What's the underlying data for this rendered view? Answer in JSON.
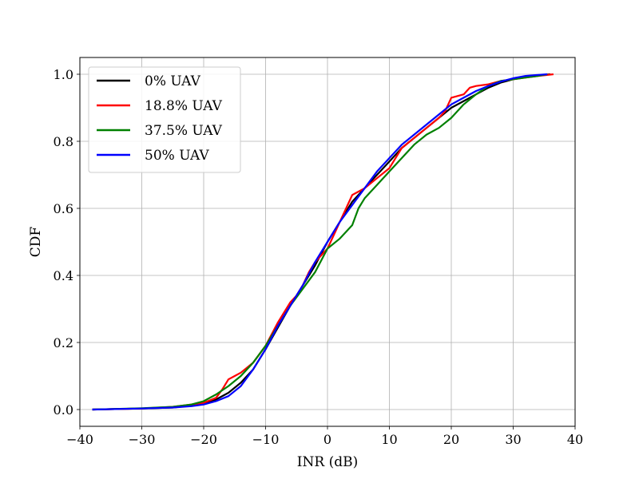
{
  "chart_data": {
    "type": "line",
    "title": "",
    "xlabel": "INR (dB)",
    "ylabel": "CDF",
    "xlim": [
      -40,
      40
    ],
    "ylim": [
      -0.05,
      1.05
    ],
    "xticks": [
      -40,
      -30,
      -20,
      -10,
      0,
      10,
      20,
      30,
      40
    ],
    "yticks": [
      0.0,
      0.2,
      0.4,
      0.6,
      0.8,
      1.0
    ],
    "ytick_labels": [
      "0.0",
      "0.2",
      "0.4",
      "0.6",
      "0.8",
      "1.0"
    ],
    "grid": true,
    "legend_position": "upper-left",
    "series": [
      {
        "name": "0% UAV",
        "color": "#000000",
        "x": [
          -38,
          -30,
          -25,
          -22,
          -20,
          -18,
          -16,
          -14,
          -12,
          -10,
          -8,
          -6,
          -4,
          -2,
          0,
          2,
          4,
          6,
          8,
          10,
          12,
          14,
          16,
          18,
          20,
          22,
          24,
          26,
          28,
          30,
          32,
          34,
          36
        ],
        "y": [
          0.0,
          0.003,
          0.006,
          0.012,
          0.018,
          0.03,
          0.05,
          0.08,
          0.12,
          0.18,
          0.245,
          0.31,
          0.37,
          0.43,
          0.5,
          0.56,
          0.62,
          0.66,
          0.7,
          0.74,
          0.78,
          0.81,
          0.84,
          0.87,
          0.9,
          0.92,
          0.94,
          0.96,
          0.975,
          0.985,
          0.992,
          0.997,
          1.0
        ]
      },
      {
        "name": "18.8% UAV",
        "color": "#ff0000",
        "x": [
          -38,
          -30,
          -25,
          -22,
          -20,
          -18,
          -17,
          -16,
          -15,
          -14,
          -12,
          -10,
          -8,
          -6,
          -5,
          -4,
          -3,
          -2,
          -1,
          0,
          1,
          2,
          3,
          4,
          5,
          6,
          8,
          10,
          12,
          14,
          16,
          18,
          19,
          20,
          22,
          23,
          24,
          26,
          28,
          30,
          32,
          34,
          36.5
        ],
        "y": [
          0.0,
          0.003,
          0.008,
          0.015,
          0.02,
          0.035,
          0.06,
          0.09,
          0.1,
          0.11,
          0.14,
          0.19,
          0.26,
          0.32,
          0.34,
          0.37,
          0.41,
          0.44,
          0.46,
          0.48,
          0.52,
          0.56,
          0.6,
          0.64,
          0.65,
          0.66,
          0.69,
          0.72,
          0.78,
          0.81,
          0.84,
          0.87,
          0.89,
          0.93,
          0.94,
          0.96,
          0.965,
          0.97,
          0.98,
          0.985,
          0.99,
          0.995,
          1.0
        ]
      },
      {
        "name": "37.5% UAV",
        "color": "#008000",
        "x": [
          -38,
          -30,
          -25,
          -22,
          -20,
          -18,
          -16,
          -14,
          -12,
          -10,
          -8,
          -6,
          -4,
          -2,
          0,
          2,
          4,
          5,
          6,
          8,
          10,
          12,
          14,
          16,
          18,
          20,
          22,
          24,
          26,
          28,
          30,
          32,
          34,
          35.5
        ],
        "y": [
          0.0,
          0.004,
          0.008,
          0.015,
          0.025,
          0.045,
          0.07,
          0.1,
          0.14,
          0.19,
          0.25,
          0.31,
          0.36,
          0.41,
          0.48,
          0.51,
          0.55,
          0.6,
          0.63,
          0.67,
          0.71,
          0.75,
          0.79,
          0.82,
          0.84,
          0.87,
          0.91,
          0.94,
          0.965,
          0.98,
          0.985,
          0.99,
          0.995,
          1.0
        ]
      },
      {
        "name": "50% UAV",
        "color": "#0000ff",
        "x": [
          -38,
          -30,
          -25,
          -22,
          -20,
          -18,
          -16,
          -14,
          -12,
          -10,
          -8,
          -6,
          -4,
          -2,
          0,
          2,
          4,
          6,
          8,
          10,
          12,
          14,
          16,
          18,
          20,
          22,
          24,
          26,
          28,
          30,
          32,
          34,
          35.5
        ],
        "y": [
          0.0,
          0.003,
          0.006,
          0.01,
          0.015,
          0.025,
          0.04,
          0.07,
          0.12,
          0.18,
          0.25,
          0.31,
          0.37,
          0.44,
          0.5,
          0.56,
          0.61,
          0.66,
          0.71,
          0.75,
          0.79,
          0.82,
          0.85,
          0.88,
          0.91,
          0.93,
          0.95,
          0.965,
          0.978,
          0.988,
          0.995,
          0.998,
          1.0
        ]
      }
    ]
  }
}
